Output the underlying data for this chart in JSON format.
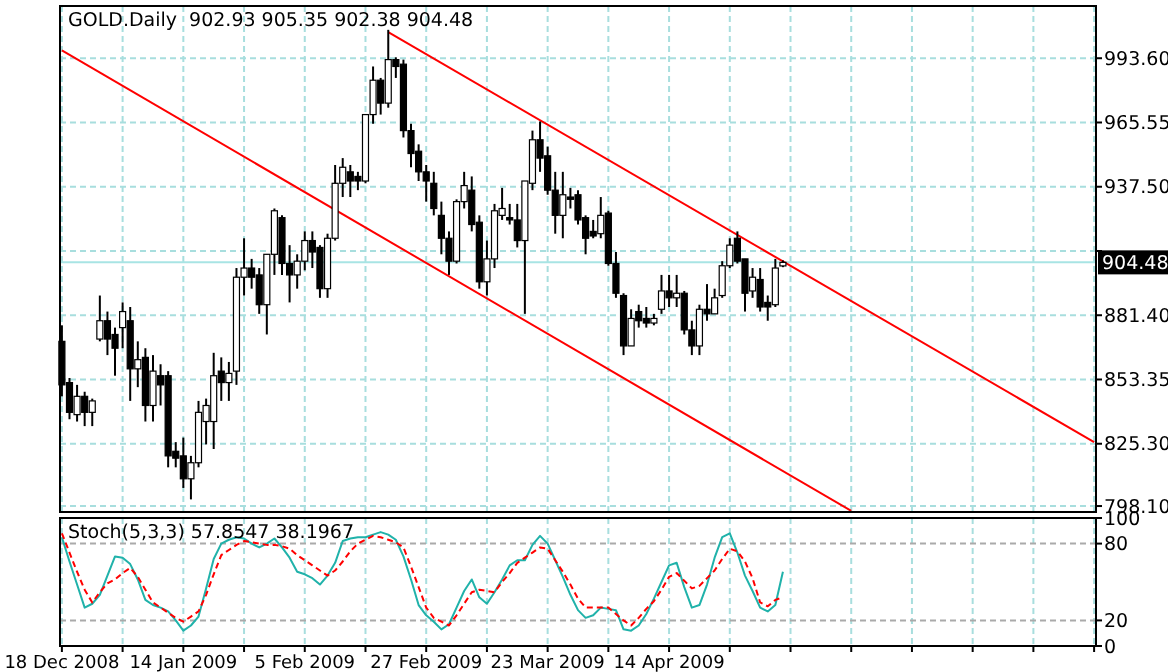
{
  "chart_data": [
    {
      "type": "candlestick",
      "title": "GOLD.Daily  902.93 905.35 902.38 904.48",
      "tick_labels": "y",
      "grid": true,
      "categories": [
        null,
        null,
        null,
        null,
        null,
        null,
        null,
        null,
        null,
        null,
        null,
        null,
        null,
        null,
        null,
        null,
        null,
        null,
        null,
        null,
        null,
        null,
        null,
        null,
        null,
        null,
        null,
        null,
        null,
        null,
        null,
        null,
        null,
        null,
        null,
        null,
        null,
        null,
        null,
        null,
        null,
        null,
        null,
        null,
        null,
        null,
        null,
        null,
        null,
        null,
        null,
        null,
        null,
        null,
        null,
        null,
        null,
        null,
        null,
        null,
        null,
        null,
        null,
        null,
        null,
        null,
        null,
        null,
        null,
        null,
        null,
        null,
        null,
        null,
        null,
        null,
        null,
        null,
        null,
        null,
        null,
        null,
        null,
        null,
        null,
        null,
        null,
        null,
        null,
        null,
        null,
        null,
        null,
        null,
        null,
        null,
        null,
        null,
        null,
        null,
        null,
        null,
        null,
        null,
        null,
        null,
        null,
        null,
        null,
        null,
        null,
        null,
        null,
        null,
        null,
        null,
        null,
        null,
        null,
        null,
        null,
        null,
        null,
        null,
        null,
        null,
        null,
        null,
        null,
        null,
        null,
        null,
        null,
        null,
        null,
        null,
        null
      ],
      "ohlc": [
        [
          870,
          877,
          846,
          851
        ],
        [
          852,
          854,
          836,
          839
        ],
        [
          838,
          851,
          835,
          846
        ],
        [
          846,
          848,
          833,
          839
        ],
        [
          839,
          845,
          833,
          844
        ],
        [
          871,
          890,
          870,
          879
        ],
        [
          879,
          883,
          864,
          871
        ],
        [
          873,
          876,
          855,
          867
        ],
        [
          876,
          887,
          867,
          883
        ],
        [
          879,
          885,
          844,
          858
        ],
        [
          858,
          870,
          850,
          862
        ],
        [
          863,
          867,
          835,
          842
        ],
        [
          842,
          864,
          835,
          857
        ],
        [
          855,
          860,
          842,
          851
        ],
        [
          855,
          857,
          815,
          820
        ],
        [
          822,
          826,
          815,
          819
        ],
        [
          820,
          828,
          806,
          810
        ],
        [
          810,
          820,
          801,
          817
        ],
        [
          817,
          844,
          815,
          839
        ],
        [
          835,
          845,
          825,
          842
        ],
        [
          835,
          865,
          823,
          855
        ],
        [
          857,
          863,
          844,
          852
        ],
        [
          852,
          861,
          844,
          856
        ],
        [
          857,
          902,
          851,
          898
        ],
        [
          898,
          915,
          890,
          902
        ],
        [
          902,
          906,
          893,
          898
        ],
        [
          899,
          902,
          882,
          886
        ],
        [
          886,
          908,
          873,
          908
        ],
        [
          908,
          928,
          899,
          927
        ],
        [
          924,
          925,
          899,
          904
        ],
        [
          904,
          912,
          887,
          899
        ],
        [
          899,
          908,
          893,
          905
        ],
        [
          905,
          918,
          901,
          914
        ],
        [
          914,
          918,
          902,
          909
        ],
        [
          911,
          912,
          889,
          893
        ],
        [
          893,
          917,
          889,
          915
        ],
        [
          915,
          947,
          914,
          939
        ],
        [
          939,
          950,
          933,
          946
        ],
        [
          944,
          947,
          933,
          940
        ],
        [
          942,
          944,
          936,
          940
        ],
        [
          940,
          969,
          939,
          969
        ],
        [
          969,
          990,
          965,
          984
        ],
        [
          984,
          985,
          969,
          974
        ],
        [
          974,
          1006,
          972,
          993
        ],
        [
          993,
          994,
          985,
          990
        ],
        [
          991,
          993,
          959,
          962
        ],
        [
          962,
          965,
          946,
          952
        ],
        [
          953,
          956,
          940,
          944
        ],
        [
          944,
          947,
          931,
          940
        ],
        [
          939,
          944,
          925,
          928
        ],
        [
          925,
          931,
          908,
          915
        ],
        [
          915,
          918,
          899,
          905
        ],
        [
          905,
          932,
          904,
          931
        ],
        [
          931,
          944,
          928,
          938
        ],
        [
          936,
          942,
          918,
          921
        ],
        [
          922,
          925,
          893,
          896
        ],
        [
          896,
          914,
          890,
          906
        ],
        [
          906,
          930,
          902,
          927
        ],
        [
          925,
          937,
          923,
          928
        ],
        [
          924,
          930,
          921,
          923
        ],
        [
          923,
          930,
          911,
          914
        ],
        [
          914,
          940,
          882,
          940
        ],
        [
          939,
          962,
          936,
          958
        ],
        [
          958,
          966,
          944,
          950
        ],
        [
          951,
          955,
          934,
          936
        ],
        [
          936,
          944,
          917,
          925
        ],
        [
          925,
          944,
          915,
          934
        ],
        [
          933,
          937,
          928,
          932
        ],
        [
          934,
          936,
          921,
          923
        ],
        [
          924,
          925,
          908,
          915
        ],
        [
          918,
          923,
          915,
          916
        ],
        [
          917,
          933,
          915,
          925
        ],
        [
          926,
          927,
          903,
          904
        ],
        [
          904,
          909,
          889,
          891
        ],
        [
          890,
          891,
          864,
          868
        ],
        [
          868,
          884,
          868,
          880
        ],
        [
          883,
          886,
          876,
          879
        ],
        [
          880,
          885,
          876,
          878
        ],
        [
          878,
          882,
          877,
          880
        ],
        [
          884,
          899,
          882,
          892
        ],
        [
          892,
          899,
          885,
          889
        ],
        [
          889,
          899,
          885,
          891
        ],
        [
          891,
          892,
          873,
          875
        ],
        [
          875,
          879,
          864,
          868
        ],
        [
          868,
          886,
          864,
          884
        ],
        [
          884,
          895,
          879,
          882
        ],
        [
          882,
          893,
          882,
          889
        ],
        [
          890,
          905,
          889,
          903
        ],
        [
          903,
          915,
          902,
          912
        ],
        [
          915,
          918,
          904,
          905
        ],
        [
          906,
          906,
          883,
          891
        ],
        [
          892,
          902,
          889,
          898
        ],
        [
          897,
          902,
          883,
          885
        ],
        [
          887,
          890,
          879,
          885
        ],
        [
          886,
          906,
          885,
          902
        ],
        [
          902.93,
          905.35,
          902.38,
          904.48
        ],
        null,
        null,
        null,
        null,
        null,
        null,
        null,
        null,
        null,
        null,
        null,
        null,
        null,
        null,
        null,
        null,
        null,
        null,
        null,
        null,
        null,
        null,
        null,
        null,
        null,
        null,
        null,
        null,
        null,
        null,
        null,
        null,
        null,
        null,
        null,
        null,
        null,
        null,
        null,
        null,
        null
      ],
      "ylim": [
        795.5,
        1016.4
      ],
      "yticks": [
        {
          "value": 798.1,
          "label": "798.10"
        },
        {
          "value": 825.3,
          "label": "825.30"
        },
        {
          "value": 853.35,
          "label": "853.35"
        },
        {
          "value": 881.4,
          "label": "881.40"
        },
        {
          "value": 909.45,
          "label": null
        },
        {
          "value": 937.5,
          "label": "937.50"
        },
        {
          "value": 965.55,
          "label": "965.55"
        },
        {
          "value": 993.6,
          "label": "993.60"
        }
      ],
      "series": [
        {
          "type": "line",
          "color": "#ff0000",
          "values": [
            null,
            null,
            null,
            null,
            null,
            null,
            null,
            null,
            null,
            null,
            null,
            null,
            null,
            null,
            null,
            null,
            null,
            null,
            null,
            null,
            null,
            null,
            null,
            null,
            null,
            null,
            null,
            null,
            null,
            null,
            null,
            null,
            null,
            null,
            null,
            null,
            null,
            null,
            null,
            null,
            null,
            null,
            null,
            1005,
            null,
            null,
            null,
            null,
            null,
            null,
            null,
            null,
            null,
            null,
            null,
            null,
            null,
            null,
            null,
            null,
            null,
            null,
            null,
            null,
            null,
            null,
            null,
            null,
            null,
            null,
            null,
            null,
            null,
            null,
            null,
            null,
            null,
            null,
            null,
            null,
            null,
            null,
            null,
            null,
            null,
            null,
            null,
            null,
            null,
            null,
            null,
            null,
            null,
            null,
            null,
            null,
            null,
            null,
            null,
            null,
            null,
            null,
            null,
            null,
            null,
            null,
            null,
            null,
            null,
            null,
            null,
            null,
            null,
            null,
            null,
            null,
            null,
            null,
            null,
            null,
            null,
            null,
            null,
            null,
            null,
            null,
            null,
            null,
            null,
            null,
            null,
            null,
            null,
            null,
            null,
            null,
            826
          ]
        },
        {
          "type": "line",
          "color": "#ff0000",
          "values": [
            997,
            null,
            null,
            null,
            null,
            null,
            null,
            null,
            null,
            null,
            null,
            null,
            null,
            null,
            null,
            null,
            null,
            null,
            null,
            null,
            null,
            null,
            null,
            null,
            null,
            null,
            null,
            null,
            null,
            null,
            null,
            null,
            null,
            null,
            null,
            null,
            null,
            null,
            null,
            null,
            null,
            null,
            null,
            null,
            null,
            null,
            null,
            null,
            null,
            null,
            null,
            null,
            null,
            null,
            null,
            null,
            null,
            null,
            null,
            null,
            null,
            null,
            null,
            null,
            null,
            null,
            null,
            null,
            null,
            null,
            null,
            null,
            null,
            null,
            null,
            null,
            null,
            null,
            null,
            null,
            null,
            null,
            null,
            null,
            null,
            null,
            null,
            null,
            null,
            null,
            null,
            null,
            null,
            null,
            null,
            null,
            null,
            null,
            null,
            null,
            null,
            null,
            null,
            null,
            796,
            null,
            null,
            null,
            null,
            null,
            null,
            null,
            null,
            null,
            null,
            null,
            null,
            null,
            null,
            null,
            null,
            null,
            null,
            null,
            null,
            null,
            null,
            null,
            null,
            null,
            null,
            null,
            null,
            null,
            null,
            null,
            null
          ]
        }
      ],
      "ref_lines": [
        {
          "axis": "y",
          "value": 904.48,
          "label": "904.48",
          "color": "#a8e4e4"
        }
      ]
    },
    {
      "type": "line",
      "title": "Stoch(5,3,3) 57.8547 38.1967",
      "grid": true,
      "categories": [
        "18 Dec 2008",
        null,
        null,
        null,
        null,
        null,
        null,
        null,
        null,
        null,
        null,
        null,
        null,
        null,
        null,
        null,
        "14 Jan 2009",
        null,
        null,
        null,
        null,
        null,
        null,
        null,
        null,
        null,
        null,
        null,
        null,
        null,
        null,
        null,
        "5 Feb 2009",
        null,
        null,
        null,
        null,
        null,
        null,
        null,
        null,
        null,
        null,
        null,
        null,
        null,
        null,
        null,
        "27 Feb 2009",
        null,
        null,
        null,
        null,
        null,
        null,
        null,
        null,
        null,
        null,
        null,
        null,
        null,
        null,
        null,
        "23 Mar 2009",
        null,
        null,
        null,
        null,
        null,
        null,
        null,
        null,
        null,
        null,
        null,
        null,
        null,
        null,
        null,
        "14 Apr 2009",
        null,
        null,
        null,
        null,
        null,
        null,
        null,
        null,
        null,
        null,
        null,
        null,
        null,
        null,
        null,
        null,
        null,
        null,
        null,
        null,
        null,
        null,
        null,
        null,
        null,
        null,
        null,
        null,
        null,
        null,
        null,
        null,
        null,
        null,
        null,
        null,
        null,
        null,
        null,
        null,
        null,
        null,
        null,
        null,
        null,
        null,
        null,
        null,
        null,
        null,
        null,
        null,
        null,
        null,
        null,
        null
      ],
      "ylim": [
        0,
        100
      ],
      "yticks": [
        0,
        20,
        80,
        100
      ],
      "series": [
        {
          "color": "#20b2aa",
          "line_style": "solid",
          "values": [
            85,
            66,
            48,
            30,
            33,
            40,
            55,
            70,
            69,
            64,
            52,
            36,
            32,
            30,
            27,
            20,
            12,
            16,
            23,
            45,
            68,
            80,
            83,
            85,
            84,
            80,
            77,
            80,
            84,
            77,
            69,
            58,
            56,
            53,
            48,
            55,
            65,
            82,
            84,
            85,
            85,
            87,
            89,
            87,
            83,
            70,
            52,
            32,
            24,
            19,
            13,
            17,
            30,
            43,
            52,
            38,
            33,
            42,
            52,
            63,
            67,
            67,
            79,
            86,
            80,
            67,
            54,
            40,
            28,
            22,
            24,
            30,
            29,
            28,
            13,
            12,
            16,
            25,
            37,
            50,
            63,
            65,
            46,
            30,
            32,
            48,
            69,
            85,
            88,
            73,
            55,
            43,
            30,
            27,
            32,
            58,
            null,
            null,
            null,
            null,
            null,
            null,
            null,
            null,
            null,
            null,
            null,
            null,
            null,
            null,
            null,
            null,
            null,
            null,
            null,
            null,
            null,
            null,
            null,
            null,
            null,
            null,
            null,
            null,
            null,
            null,
            null,
            null,
            null,
            null,
            null,
            null,
            null,
            null,
            null,
            null,
            null
          ]
        },
        {
          "color": "#ff0000",
          "line_style": "dashed",
          "values": [
            88,
            73,
            58,
            44,
            34,
            42,
            49,
            52,
            57,
            61,
            54,
            44,
            34,
            30,
            26,
            22,
            19,
            23,
            27,
            40,
            56,
            71,
            75,
            79,
            82,
            81,
            80,
            79,
            79,
            78,
            76,
            71,
            67,
            63,
            59,
            55,
            59,
            66,
            74,
            80,
            83,
            86,
            85,
            83,
            81,
            77,
            62,
            46,
            30,
            22,
            19,
            16,
            24,
            33,
            42,
            44,
            43,
            42,
            50,
            57,
            65,
            69,
            73,
            77,
            76,
            67,
            58,
            48,
            37,
            30,
            30,
            30,
            30,
            25,
            20,
            16,
            22,
            29,
            35,
            44,
            54,
            57,
            51,
            45,
            47,
            53,
            59,
            68,
            76,
            74,
            66,
            53,
            34,
            31,
            36,
            38,
            null,
            null,
            null,
            null,
            null,
            null,
            null,
            null,
            null,
            null,
            null,
            null,
            null,
            null,
            null,
            null,
            null,
            null,
            null,
            null,
            null,
            null,
            null,
            null,
            null,
            null,
            null,
            null,
            null,
            null,
            null,
            null,
            null,
            null,
            null,
            null,
            null,
            null,
            null,
            null,
            null
          ]
        }
      ]
    }
  ]
}
